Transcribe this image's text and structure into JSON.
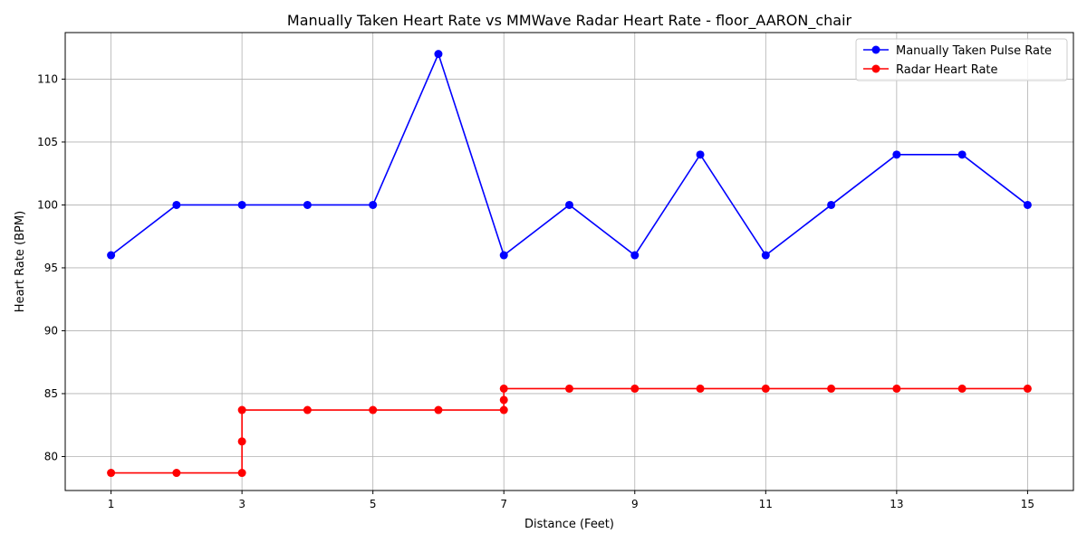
{
  "chart_data": {
    "type": "line",
    "title": "Manually Taken Heart Rate vs MMWave Radar Heart Rate - floor_AARON_chair",
    "xlabel": "Distance (Feet)",
    "ylabel": "Heart Rate (BPM)",
    "xlim": [
      0.3,
      15.7
    ],
    "ylim": [
      77.3,
      113.7
    ],
    "xticks": [
      1,
      3,
      5,
      7,
      9,
      11,
      13,
      15
    ],
    "yticks": [
      80,
      85,
      90,
      95,
      100,
      105,
      110
    ],
    "grid": true,
    "legend_position": "top-right",
    "series": [
      {
        "name": "Manually Taken Pulse Rate",
        "color": "#0000ff",
        "marker": "circle",
        "x": [
          1,
          2,
          3,
          4,
          5,
          6,
          7,
          8,
          9,
          10,
          11,
          12,
          13,
          14,
          15
        ],
        "y": [
          96,
          100,
          100,
          100,
          100,
          112,
          96,
          100,
          96,
          104,
          96,
          100,
          104,
          104,
          100
        ]
      },
      {
        "name": "Radar Heart Rate",
        "color": "#ff0000",
        "marker": "circle",
        "x": [
          1,
          2,
          3,
          3,
          3,
          4,
          5,
          6,
          7,
          7,
          7,
          8,
          9,
          10,
          11,
          12,
          13,
          14,
          15
        ],
        "y": [
          78.7,
          78.7,
          78.7,
          81.2,
          83.7,
          83.7,
          83.7,
          83.7,
          83.7,
          84.5,
          85.4,
          85.4,
          85.4,
          85.4,
          85.4,
          85.4,
          85.4,
          85.4,
          85.4
        ]
      }
    ]
  }
}
